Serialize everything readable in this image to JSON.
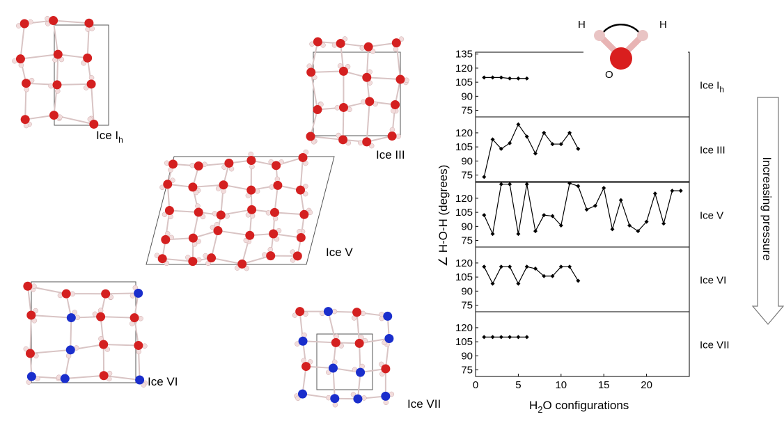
{
  "structures": [
    {
      "main": "Ice I",
      "sub": "h"
    },
    {
      "main": "Ice III"
    },
    {
      "main": "Ice V"
    },
    {
      "main": "Ice VI"
    },
    {
      "main": "Ice VII"
    }
  ],
  "molecule": {
    "h1": "H",
    "h2": "H",
    "o": "O"
  },
  "arrow_label": "Increasing pressure",
  "axis_labels": {
    "y": "∠ H-O-H (degrees)",
    "x_main": "H",
    "x_sub": "2",
    "x_rest": "O configurations"
  },
  "chart_data": [
    {
      "type": "line",
      "panel_label": {
        "main": "Ice I",
        "sub": "h"
      },
      "color": "#000000",
      "x": [
        1,
        2,
        3,
        4,
        5,
        6
      ],
      "values": [
        110,
        110,
        110,
        109,
        109,
        109
      ],
      "xlim": [
        0,
        25
      ],
      "ylim": [
        68,
        137
      ],
      "yticks": [
        75,
        90,
        105,
        120,
        135
      ]
    },
    {
      "type": "line",
      "panel_label": {
        "main": "Ice III"
      },
      "color": "#000000",
      "x": [
        1,
        2,
        3,
        4,
        5,
        6,
        7,
        8,
        9,
        10,
        11,
        12
      ],
      "values": [
        73,
        113,
        103,
        109,
        129,
        116,
        98,
        120,
        108,
        108,
        120,
        103
      ],
      "xlim": [
        0,
        25
      ],
      "ylim": [
        68,
        137
      ],
      "yticks": [
        75,
        90,
        105,
        120
      ]
    },
    {
      "type": "line",
      "panel_label": {
        "main": "Ice V"
      },
      "color": "#000000",
      "x": [
        1,
        2,
        3,
        4,
        5,
        6,
        7,
        8,
        9,
        10,
        11,
        12,
        13,
        14,
        15,
        16,
        17,
        18,
        19,
        20,
        21,
        22,
        23,
        24
      ],
      "values": [
        102,
        82,
        135,
        135,
        82,
        135,
        85,
        102,
        101,
        91,
        136,
        133,
        108,
        112,
        131,
        87,
        118,
        91,
        85,
        95,
        125,
        93,
        128,
        128
      ],
      "xlim": [
        0,
        25
      ],
      "ylim": [
        68,
        137
      ],
      "yticks": [
        75,
        90,
        105,
        120
      ]
    },
    {
      "type": "line",
      "panel_label": {
        "main": "Ice VI"
      },
      "color": "#000000",
      "x": [
        1,
        2,
        3,
        4,
        5,
        6,
        7,
        8,
        9,
        10,
        11,
        12
      ],
      "values": [
        116,
        98,
        116,
        116,
        98,
        116,
        114,
        106,
        106,
        116,
        116,
        101
      ],
      "xlim": [
        0,
        25
      ],
      "ylim": [
        68,
        137
      ],
      "yticks": [
        75,
        90,
        105,
        120
      ]
    },
    {
      "type": "line",
      "panel_label": {
        "main": "Ice VII"
      },
      "color": "#000000",
      "x": [
        1,
        2,
        3,
        4,
        5,
        6
      ],
      "values": [
        110,
        110,
        110,
        110,
        110,
        110
      ],
      "xlim": [
        0,
        25
      ],
      "ylim": [
        68,
        137
      ],
      "yticks": [
        75,
        90,
        105,
        120
      ],
      "xticks": [
        0,
        5,
        10,
        15,
        20
      ]
    }
  ]
}
